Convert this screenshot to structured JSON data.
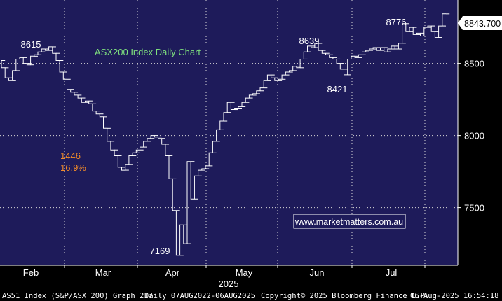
{
  "colors": {
    "plot_bg": "#1e1b5a",
    "page_bg": "#000000",
    "price_line": "#ffffff",
    "grid": "#d9d9d9",
    "title": "#7ee07e",
    "drawdown_label": "#f08a2a",
    "watermark_text": "#ffffff",
    "watermark_bg": "#1e1b5a",
    "watermark_border": "#ffffff",
    "last_price_bg": "#ffffff",
    "last_price_text": "#000000"
  },
  "chart_data": {
    "type": "line",
    "title": "ASX200 Index Daily Chart",
    "series": [
      {
        "values": [
          8520,
          8470,
          8400,
          8380,
          8450,
          8530,
          8540,
          8500,
          8490,
          8550,
          8560,
          8580,
          8600,
          8590,
          8615,
          8570,
          8520,
          8440,
          8390,
          8320,
          8300,
          8280,
          8260,
          8230,
          8240,
          8220,
          8170,
          8150,
          8130,
          8050,
          7960,
          7900,
          7860,
          7780,
          7760,
          7800,
          7860,
          7880,
          7900,
          7920,
          7960,
          7980,
          8000,
          7990,
          7980,
          7940,
          7860,
          7700,
          7480,
          7169,
          7380,
          7250,
          7820,
          7560,
          7720,
          7760,
          7770,
          7790,
          7880,
          7960,
          8040,
          8100,
          8160,
          8230,
          8180,
          8190,
          8200,
          8230,
          8260,
          8280,
          8290,
          8310,
          8330,
          8380,
          8420,
          8400,
          8380,
          8390,
          8420,
          8440,
          8450,
          8480,
          8470,
          8530,
          8580,
          8620,
          8610,
          8639,
          8590,
          8570,
          8560,
          8540,
          8530,
          8500,
          8460,
          8421,
          8530,
          8550,
          8540,
          8560,
          8580,
          8590,
          8600,
          8610,
          8590,
          8610,
          8580,
          8600,
          8620,
          8600,
          8640,
          8776,
          8720,
          8750,
          8700,
          8710,
          8690,
          8750,
          8760,
          8720,
          8680,
          8760,
          8843.7
        ]
      }
    ],
    "x_ticks": [
      "Feb",
      "Mar",
      "Apr",
      "May",
      "Jun",
      "Jul"
    ],
    "x_year_label": "2025",
    "y_ticks": [
      7500,
      8000,
      8500
    ],
    "ylim": [
      7100,
      8940
    ],
    "grid": true,
    "last_price": "8843.700",
    "annotations": {
      "high_feb": "8615",
      "low_apr": "7169",
      "high_jun": "8639",
      "low_jun": "8421",
      "high_jul": "8776",
      "drawdown_points": "1446",
      "drawdown_pct": "16.9%"
    }
  },
  "watermark": "www.marketmatters.com.au",
  "footer": {
    "left": "AS51 Index (S&P/ASX 200) Graph 217",
    "mid": "Daily 07AUG2022-06AUG2025",
    "copyright": "Copyright© 2025 Bloomberg Finance L.P.",
    "timestamp": "06-Aug-2025 16:54:18"
  }
}
